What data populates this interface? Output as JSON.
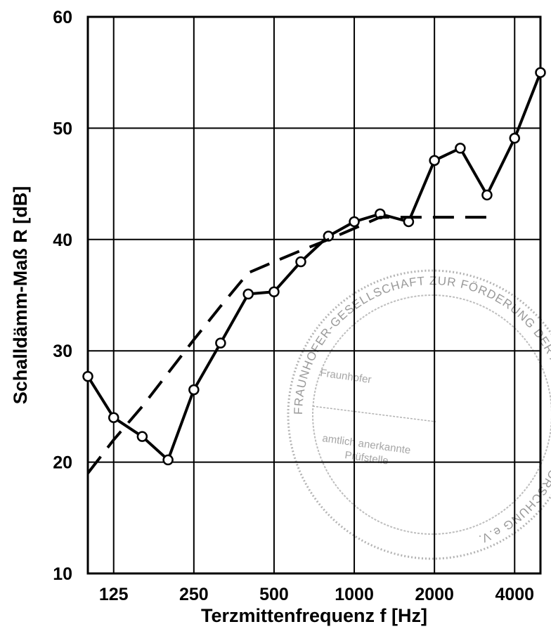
{
  "chart_data": {
    "type": "line",
    "title": "",
    "xlabel": "Terzmittenfrequenz f [Hz]",
    "ylabel": "Schalldämm-Maß R [dB]",
    "x_scale": "log",
    "xlim": [
      100,
      5000
    ],
    "ylim": [
      10,
      60
    ],
    "x_ticks": [
      125,
      250,
      500,
      1000,
      2000,
      4000
    ],
    "x_tick_labels": [
      "125",
      "250",
      "500",
      "1000",
      "2000",
      "4000"
    ],
    "y_ticks": [
      10,
      20,
      30,
      40,
      50,
      60
    ],
    "y_tick_labels": [
      "10",
      "20",
      "30",
      "40",
      "50",
      "60"
    ],
    "grid": true,
    "legend": "none",
    "series": [
      {
        "style": "solid",
        "markers": "open-circle",
        "color": "#000000",
        "x": [
          100,
          125,
          160,
          200,
          250,
          315,
          400,
          500,
          630,
          800,
          1000,
          1250,
          1600,
          2000,
          2500,
          3150,
          4000,
          5000
        ],
        "y": [
          27.7,
          24.0,
          22.3,
          20.2,
          26.5,
          30.7,
          35.1,
          35.3,
          38.0,
          40.3,
          41.6,
          42.3,
          41.6,
          47.1,
          48.2,
          44.0,
          49.1,
          55.0
        ]
      },
      {
        "style": "dashed",
        "markers": "none",
        "color": "#000000",
        "x": [
          100,
          125,
          160,
          200,
          250,
          315,
          400,
          500,
          630,
          800,
          1000,
          1250,
          1600,
          2000,
          2500,
          3150
        ],
        "y": [
          19.0,
          22.0,
          25.0,
          28.0,
          31.0,
          34.0,
          37.0,
          38.0,
          39.0,
          40.0,
          41.0,
          42.0,
          42.0,
          42.0,
          42.0,
          42.0
        ]
      }
    ]
  },
  "stamp": {
    "ring_text": "FRAUNHOFER-GESELLSCHAFT ZUR FÖRDERUNG DER ANGEWANDTEN FORSCHUNG e.V.",
    "line1": "Fraunhofer",
    "line2": "amtlich anerkannte",
    "line3": "Prüfstelle"
  }
}
